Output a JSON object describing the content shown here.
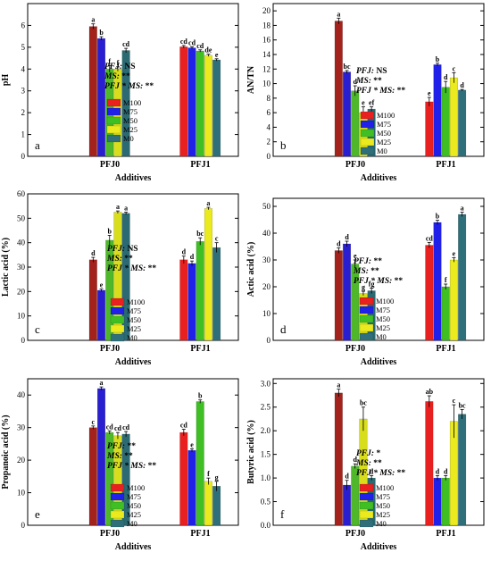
{
  "legend": [
    "M100",
    "M75",
    "M50",
    "M25",
    "M0"
  ],
  "colors": [
    "#e8201f",
    "#2020e8",
    "#3fbf24",
    "#eaea1e",
    "#2f6f7a"
  ],
  "colors_dark": [
    "#a3231c",
    "#2a1fd0",
    "#4fb82a",
    "#d8dd1c",
    "#2b6a73"
  ],
  "chart_data": [
    {
      "type": "bar",
      "panel": "a",
      "ylabel": "pH",
      "xlabel": "Additives",
      "categories": [
        "PFJ0",
        "PFJ1"
      ],
      "ylim": [
        0,
        7
      ],
      "yticks": [
        0,
        1,
        2,
        3,
        4,
        5,
        6
      ],
      "series": [
        {
          "name": "M100",
          "values": [
            5.95,
            5.02
          ],
          "err": [
            0.12,
            0.06
          ],
          "sig": [
            "a",
            "cd"
          ]
        },
        {
          "name": "M75",
          "values": [
            5.4,
            4.97
          ],
          "err": [
            0.08,
            0.05
          ],
          "sig": [
            "b",
            "cd"
          ]
        },
        {
          "name": "M50",
          "values": [
            4.0,
            4.83
          ],
          "err": [
            0.15,
            0.05
          ],
          "sig": [
            "f",
            "cd"
          ]
        },
        {
          "name": "M25",
          "values": [
            4.0,
            4.63
          ],
          "err": [
            0.1,
            0.05
          ],
          "sig": [
            "f",
            "de"
          ]
        },
        {
          "name": "M0",
          "values": [
            4.85,
            4.42
          ],
          "err": [
            0.1,
            0.05
          ],
          "sig": [
            "cd",
            "e"
          ]
        }
      ],
      "stats": [
        "PFJ: NS",
        "MS: **",
        "PFJ * MS: **"
      ]
    },
    {
      "type": "bar",
      "panel": "b",
      "ylabel": "AN/TN",
      "xlabel": "Additives",
      "categories": [
        "PFJ0",
        "PFJ1"
      ],
      "ylim": [
        0,
        21
      ],
      "yticks": [
        0,
        2,
        4,
        6,
        8,
        10,
        12,
        14,
        16,
        18,
        20
      ],
      "series": [
        {
          "name": "M100",
          "values": [
            18.6,
            7.5
          ],
          "err": [
            0.4,
            0.6
          ],
          "sig": [
            "a",
            "e"
          ]
        },
        {
          "name": "M75",
          "values": [
            11.6,
            12.6
          ],
          "err": [
            0.2,
            0.2
          ],
          "sig": [
            "bc",
            "b"
          ]
        },
        {
          "name": "M50",
          "values": [
            9.0,
            9.5
          ],
          "err": [
            0.7,
            0.8
          ],
          "sig": [
            "d",
            "d"
          ]
        },
        {
          "name": "M25",
          "values": [
            6.0,
            10.8
          ],
          "err": [
            0.8,
            0.7
          ],
          "sig": [
            "e",
            "c"
          ]
        },
        {
          "name": "M0",
          "values": [
            6.5,
            9.1
          ],
          "err": [
            0.3,
            0.1
          ],
          "sig": [
            "ef",
            "d"
          ]
        }
      ],
      "stats": [
        "PFJ: NS",
        "MS: **",
        "PFJ * MS: **"
      ]
    },
    {
      "type": "bar",
      "panel": "c",
      "ylabel": "Lactic acid (%)",
      "xlabel": "Additives",
      "categories": [
        "PFJ0",
        "PFJ1"
      ],
      "ylim": [
        0,
        60
      ],
      "yticks": [
        0,
        10,
        20,
        30,
        40,
        50,
        60
      ],
      "series": [
        {
          "name": "M100",
          "values": [
            33.0,
            33.0
          ],
          "err": [
            1.0,
            1.5
          ],
          "sig": [
            "d",
            "d"
          ]
        },
        {
          "name": "M75",
          "values": [
            20.5,
            31.5
          ],
          "err": [
            0.5,
            1.0
          ],
          "sig": [
            "e",
            "d"
          ]
        },
        {
          "name": "M50",
          "values": [
            41.0,
            40.5
          ],
          "err": [
            2.0,
            1.5
          ],
          "sig": [
            "b",
            "bc"
          ]
        },
        {
          "name": "M25",
          "values": [
            52.5,
            54.0
          ],
          "err": [
            0.5,
            0.5
          ],
          "sig": [
            "a",
            "a"
          ]
        },
        {
          "name": "M0",
          "values": [
            52.0,
            38.0
          ],
          "err": [
            0.5,
            2.0
          ],
          "sig": [
            "a",
            "c"
          ]
        }
      ],
      "stats": [
        "PFJ: NS",
        "MS: **",
        "PFJ * MS: **"
      ]
    },
    {
      "type": "bar",
      "panel": "d",
      "ylabel": "Actic acid (%)",
      "xlabel": "Additives",
      "categories": [
        "PFJ0",
        "PFJ1"
      ],
      "ylim": [
        0,
        53
      ],
      "yticks": [
        0,
        10,
        20,
        30,
        40,
        50
      ],
      "series": [
        {
          "name": "M100",
          "values": [
            33.5,
            35.5
          ],
          "err": [
            1.0,
            1.0
          ],
          "sig": [
            "d",
            "cd"
          ]
        },
        {
          "name": "M75",
          "values": [
            36.0,
            44.0
          ],
          "err": [
            1.0,
            0.8
          ],
          "sig": [
            "d",
            "b"
          ]
        },
        {
          "name": "M50",
          "values": [
            28.5,
            20.0
          ],
          "err": [
            1.5,
            1.0
          ],
          "sig": [
            "e",
            "f"
          ]
        },
        {
          "name": "M25",
          "values": [
            17.5,
            30.0
          ],
          "err": [
            0.8,
            0.8
          ],
          "sig": [
            "g",
            "e"
          ]
        },
        {
          "name": "M0",
          "values": [
            18.5,
            47.0
          ],
          "err": [
            1.0,
            0.8
          ],
          "sig": [
            "fg",
            "a"
          ]
        }
      ],
      "stats": [
        "PFJ: **",
        "MS: **",
        "PFJ * MS: **"
      ]
    },
    {
      "type": "bar",
      "panel": "e",
      "ylabel": "Propanoic acid (%)",
      "xlabel": "Additives",
      "categories": [
        "PFJ0",
        "PFJ1"
      ],
      "ylim": [
        0,
        45
      ],
      "yticks": [
        0,
        10,
        20,
        30,
        40
      ],
      "series": [
        {
          "name": "M100",
          "values": [
            30.0,
            28.5
          ],
          "err": [
            0.5,
            1.0
          ],
          "sig": [
            "c",
            "cd"
          ]
        },
        {
          "name": "M75",
          "values": [
            42.0,
            23.0
          ],
          "err": [
            0.5,
            0.5
          ],
          "sig": [
            "a",
            "e"
          ]
        },
        {
          "name": "M50",
          "values": [
            28.5,
            38.0
          ],
          "err": [
            0.5,
            0.5
          ],
          "sig": [
            "cd",
            "b"
          ]
        },
        {
          "name": "M25",
          "values": [
            27.5,
            13.5
          ],
          "err": [
            1.0,
            1.0
          ],
          "sig": [
            "cd",
            "f"
          ]
        },
        {
          "name": "M0",
          "values": [
            28.0,
            12.0
          ],
          "err": [
            0.8,
            1.5
          ],
          "sig": [
            "cd",
            "g"
          ]
        }
      ],
      "stats": [
        "PFJ: **",
        "MS: **",
        "PFJ * MS: **"
      ]
    },
    {
      "type": "bar",
      "panel": "f",
      "ylabel": "Butyric acid (%)",
      "xlabel": "Additives",
      "categories": [
        "PFJ0",
        "PFJ1"
      ],
      "ylim": [
        0,
        3.1
      ],
      "yticks": [
        0,
        0.5,
        1.0,
        1.5,
        2.0,
        2.5,
        3.0
      ],
      "series": [
        {
          "name": "M100",
          "values": [
            2.8,
            2.62
          ],
          "err": [
            0.08,
            0.12
          ],
          "sig": [
            "a",
            "ab"
          ]
        },
        {
          "name": "M75",
          "values": [
            0.85,
            1.0
          ],
          "err": [
            0.1,
            0.05
          ],
          "sig": [
            "d",
            "d"
          ]
        },
        {
          "name": "M50",
          "values": [
            1.25,
            1.0
          ],
          "err": [
            0.05,
            0.05
          ],
          "sig": [
            "d",
            "d"
          ]
        },
        {
          "name": "M25",
          "values": [
            2.25,
            2.2
          ],
          "err": [
            0.25,
            0.35
          ],
          "sig": [
            "bc",
            "c"
          ]
        },
        {
          "name": "M0",
          "values": [
            1.0,
            2.35
          ],
          "err": [
            0.05,
            0.1
          ],
          "sig": [
            "d",
            "bc"
          ]
        }
      ],
      "stats": [
        "PFJ: *",
        "MS: **",
        "PFJ * MS: **"
      ]
    }
  ]
}
